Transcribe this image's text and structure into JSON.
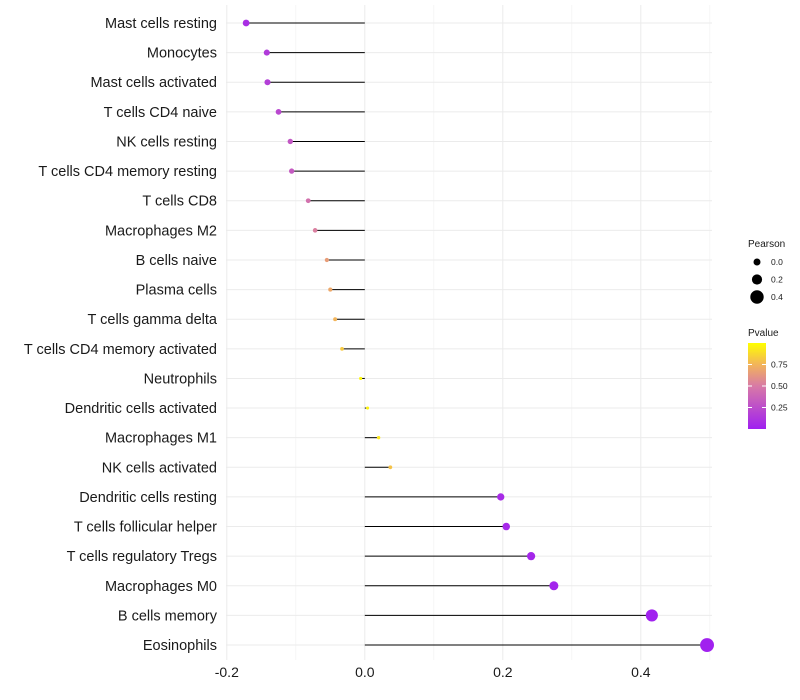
{
  "chart_data": {
    "type": "lollipop",
    "title": "",
    "xlabel": "",
    "ylabel": "",
    "xlim": [
      -0.2,
      0.5
    ],
    "xticks": [
      -0.2,
      0.0,
      0.2,
      0.4
    ],
    "xtick_labels": [
      "-0.2",
      "0.0",
      "0.2",
      "0.4"
    ],
    "categories": [
      "Mast cells resting",
      "Monocytes",
      "Mast cells activated",
      "T cells CD4 naive",
      "NK cells resting",
      "T cells CD4 memory resting",
      "T cells CD8",
      "Macrophages M2",
      "B cells naive",
      "Plasma cells",
      "T cells gamma delta",
      "T cells CD4 memory activated",
      "Neutrophils",
      "Dendritic cells activated",
      "Macrophages M1",
      "NK cells activated",
      "Dendritic cells resting",
      "T cells follicular helper",
      "T cells regulatory  Tregs",
      "Macrophages M0",
      "B cells memory",
      "Eosinophils"
    ],
    "pearson": [
      -0.172,
      -0.142,
      -0.141,
      -0.125,
      -0.108,
      -0.106,
      -0.082,
      -0.072,
      -0.055,
      -0.05,
      -0.043,
      -0.033,
      -0.006,
      0.004,
      0.02,
      0.037,
      0.197,
      0.205,
      0.241,
      0.274,
      0.416,
      0.496
    ],
    "pvalue": [
      0.08,
      0.15,
      0.17,
      0.22,
      0.3,
      0.32,
      0.45,
      0.52,
      0.65,
      0.7,
      0.75,
      0.82,
      0.98,
      0.96,
      0.92,
      0.8,
      0.06,
      0.05,
      0.04,
      0.03,
      0.01,
      0.005
    ],
    "size_legend": {
      "title": "Pearson",
      "entries": [
        {
          "label": "0.0",
          "value": 0.0
        },
        {
          "label": "0.2",
          "value": 0.2
        },
        {
          "label": "0.4",
          "value": 0.4
        }
      ]
    },
    "color_legend": {
      "title": "Pvalue",
      "range": [
        0.0,
        1.0
      ],
      "ticks": [
        {
          "label": "0.75",
          "value": 0.75
        },
        {
          "label": "0.50",
          "value": 0.5
        },
        {
          "label": "0.25",
          "value": 0.25
        }
      ],
      "low_color": "#a020f0",
      "high_color": "#ffff00"
    },
    "stem_color": "#000000",
    "grid_color": "#ebebeb"
  }
}
